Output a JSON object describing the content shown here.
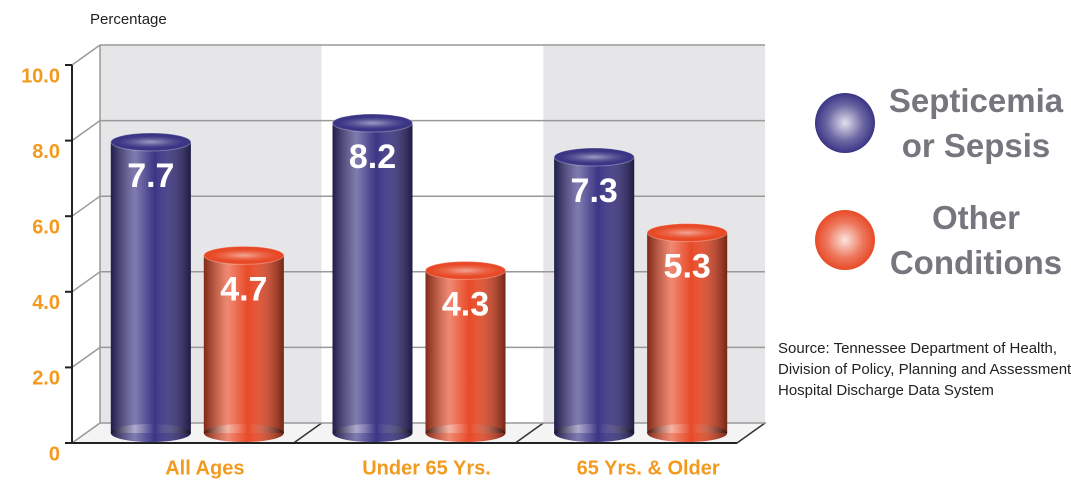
{
  "chart_data": {
    "type": "bar",
    "y_label": "Percentage",
    "categories": [
      "All Ages",
      "Under 65 Yrs.",
      "65 Yrs. & Older"
    ],
    "series": [
      {
        "name": "Septicemia or Sepsis",
        "color": "#3b3585",
        "values": [
          7.7,
          8.2,
          7.3
        ]
      },
      {
        "name": "Other Conditions",
        "color": "#e84a27",
        "values": [
          4.7,
          4.3,
          5.3
        ]
      }
    ],
    "ylim": [
      0,
      10
    ],
    "yticks": [
      0,
      {
        "value": 2,
        "label": "2.0"
      },
      {
        "value": 4,
        "label": "4.0"
      },
      {
        "value": 6,
        "label": "6.0"
      },
      {
        "value": 8,
        "label": "8.0"
      },
      {
        "value": 10,
        "label": "10.0"
      }
    ],
    "grid": true,
    "source": "Source: Tennessee Department of Health, Division of Policy, Planning and Assessment, Hospital Discharge Data System"
  }
}
